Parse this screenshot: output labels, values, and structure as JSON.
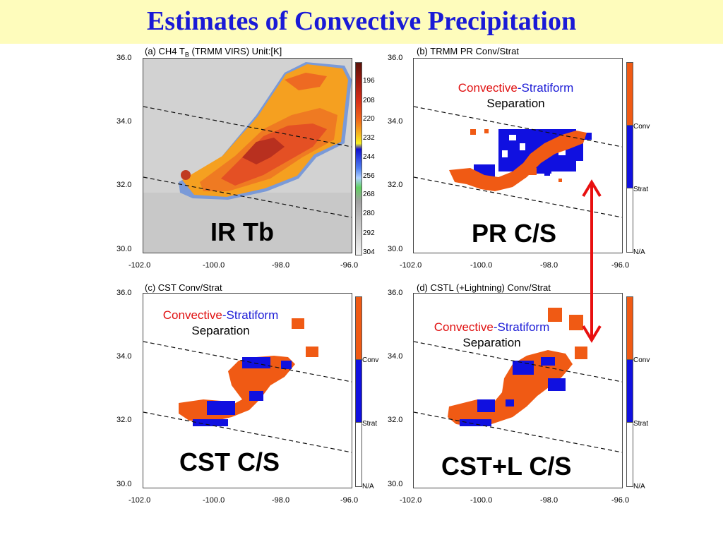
{
  "title": "Estimates of Convective Precipitation",
  "panels": {
    "a": {
      "title": "(a) CH4 T",
      "title_sub": "B",
      "title_rest": " (TRMM VIRS)  Unit:[K]",
      "label": "IR Tb",
      "colorbar": [
        "196",
        "208",
        "220",
        "232",
        "244",
        "256",
        "268",
        "280",
        "292",
        "304"
      ]
    },
    "b": {
      "title": "(b) TRMM PR Conv/Strat",
      "label": "PR C/S"
    },
    "c": {
      "title": "(c) CST Conv/Strat",
      "label": "CST C/S"
    },
    "d": {
      "title": "(d) CSTL (+Lightning) Conv/Strat",
      "label": "CST+L C/S"
    }
  },
  "axes": {
    "x_ticks": [
      "-102.0",
      "-100.0",
      "-98.0",
      "-96.0"
    ],
    "y_ticks": [
      "36.0",
      "34.0",
      "32.0",
      "30.0"
    ]
  },
  "legend": {
    "conv": "Conv",
    "strat": "Strat",
    "na": "N/A"
  },
  "separation": {
    "convective": "Convective",
    "dash": "-",
    "stratiform": "Stratiform",
    "line2": "Separation"
  },
  "colors": {
    "convective": "#f05a14",
    "stratiform": "#1010e0",
    "arrow": "#e81010",
    "title": "#1a1ad6",
    "title_bg": "#fefcbc"
  }
}
